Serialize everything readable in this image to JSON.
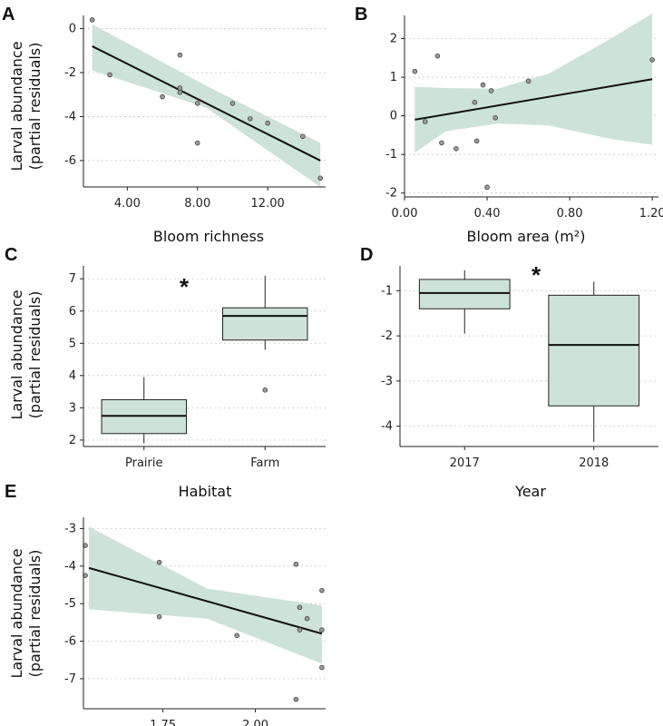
{
  "colors": {
    "ribbon": "#cde2d8",
    "point": "#9a9a9a",
    "line": "#111111"
  },
  "chart_data": [
    {
      "panel": "A",
      "type": "scatter",
      "xlabel": "Bloom richness",
      "ylabel": [
        "Larval abundance",
        "(partial residuals)"
      ],
      "xlim": [
        1.5,
        15.3
      ],
      "ylim": [
        -7.2,
        0.6
      ],
      "xticks": [
        4,
        8,
        12
      ],
      "xtick_labels": [
        "4.00",
        "8.00",
        "12.00"
      ],
      "yticks": [
        -6,
        -4,
        -2,
        0
      ],
      "ytick_labels": [
        "-6",
        "-4",
        "-2",
        "0"
      ],
      "points": [
        [
          2,
          0.4
        ],
        [
          3,
          -2.1
        ],
        [
          6,
          -3.1
        ],
        [
          7,
          -1.2
        ],
        [
          7,
          -2.7
        ],
        [
          7,
          -2.9
        ],
        [
          8,
          -3.4
        ],
        [
          8,
          -5.2
        ],
        [
          10,
          -3.4
        ],
        [
          11,
          -4.1
        ],
        [
          12,
          -4.3
        ],
        [
          14,
          -4.9
        ],
        [
          15,
          -6.8
        ]
      ],
      "fit": [
        [
          2,
          -0.8
        ],
        [
          15,
          -6.0
        ]
      ],
      "band_upper": [
        [
          2,
          0.2
        ],
        [
          8.5,
          -2.6
        ],
        [
          15,
          -5.2
        ]
      ],
      "band_lower": [
        [
          2,
          -1.9
        ],
        [
          8.5,
          -3.6
        ],
        [
          15,
          -7.2
        ]
      ]
    },
    {
      "panel": "B",
      "type": "scatter",
      "xlabel": "Bloom area (m²)",
      "ylabel": [],
      "xlim": [
        0,
        1.23
      ],
      "ylim": [
        -2.1,
        2.6
      ],
      "xticks": [
        0,
        0.4,
        0.8,
        1.2
      ],
      "xtick_labels": [
        "0.00",
        "0.40",
        "0.80",
        "1.20"
      ],
      "yticks": [
        -2,
        -1,
        0,
        1,
        2
      ],
      "ytick_labels": [
        "-2",
        "-1",
        "0",
        "1",
        "2"
      ],
      "points": [
        [
          0.05,
          1.15
        ],
        [
          0.1,
          -0.15
        ],
        [
          0.16,
          1.55
        ],
        [
          0.18,
          -0.7
        ],
        [
          0.25,
          -0.85
        ],
        [
          0.34,
          0.35
        ],
        [
          0.35,
          -0.65
        ],
        [
          0.38,
          0.8
        ],
        [
          0.4,
          -1.85
        ],
        [
          0.42,
          0.65
        ],
        [
          0.44,
          -0.05
        ],
        [
          0.6,
          0.9
        ],
        [
          1.2,
          1.45
        ]
      ],
      "fit": [
        [
          0.05,
          -0.1
        ],
        [
          1.2,
          0.95
        ]
      ],
      "band_upper": [
        [
          0.05,
          0.75
        ],
        [
          0.2,
          0.72
        ],
        [
          0.45,
          0.7
        ],
        [
          0.7,
          1.1
        ],
        [
          1.0,
          2.0
        ],
        [
          1.2,
          2.65
        ]
      ],
      "band_lower": [
        [
          0.05,
          -0.95
        ],
        [
          0.2,
          -0.4
        ],
        [
          0.45,
          -0.2
        ],
        [
          0.7,
          -0.25
        ],
        [
          1.0,
          -0.6
        ],
        [
          1.2,
          -0.75
        ]
      ]
    },
    {
      "panel": "C",
      "type": "box",
      "xlabel": "Habitat",
      "ylabel": [
        "Larval abundance",
        "(partial residuals)"
      ],
      "ylim": [
        1.8,
        7.4
      ],
      "yticks": [
        2,
        3,
        4,
        5,
        6,
        7
      ],
      "ytick_labels": [
        "2",
        "3",
        "4",
        "5",
        "6",
        "7"
      ],
      "categories": [
        "Prairie",
        "Farm"
      ],
      "boxes": [
        {
          "min": 1.9,
          "q1": 2.2,
          "median": 2.75,
          "q3": 3.25,
          "max": 3.95,
          "outliers": []
        },
        {
          "min": 4.8,
          "q1": 5.1,
          "median": 5.85,
          "q3": 6.1,
          "max": 7.1,
          "outliers": [
            3.55
          ]
        }
      ],
      "annotation": "*"
    },
    {
      "panel": "D",
      "type": "box",
      "xlabel": "Year",
      "ylabel": [],
      "ylim": [
        -4.45,
        -0.45
      ],
      "yticks": [
        -4,
        -3,
        -2,
        -1
      ],
      "ytick_labels": [
        "-4",
        "-3",
        "-2",
        "-1"
      ],
      "categories": [
        "2017",
        "2018"
      ],
      "boxes": [
        {
          "min": -1.95,
          "q1": -1.4,
          "median": -1.05,
          "q3": -0.75,
          "max": -0.55,
          "outliers": []
        },
        {
          "min": -4.35,
          "q1": -3.55,
          "median": -2.2,
          "q3": -1.1,
          "max": -0.8,
          "outliers": []
        }
      ],
      "annotation": "*"
    },
    {
      "panel": "E",
      "type": "scatter",
      "xlabel": "",
      "ylabel": [
        "Larval abundance",
        "(partial residuals)"
      ],
      "xlim": [
        1.535,
        2.19
      ],
      "ylim": [
        -7.8,
        -2.7
      ],
      "xticks": [
        1.75,
        2.0
      ],
      "xtick_labels": [
        "1.75",
        "2.00"
      ],
      "yticks": [
        -7,
        -6,
        -5,
        -4,
        -3
      ],
      "ytick_labels": [
        "-7",
        "-6",
        "-5",
        "-4",
        "-3"
      ],
      "points": [
        [
          1.54,
          -3.45
        ],
        [
          1.54,
          -4.25
        ],
        [
          1.74,
          -3.9
        ],
        [
          1.74,
          -5.35
        ],
        [
          1.95,
          -5.85
        ],
        [
          2.11,
          -3.95
        ],
        [
          2.11,
          -7.55
        ],
        [
          2.12,
          -5.1
        ],
        [
          2.12,
          -5.7
        ],
        [
          2.14,
          -5.4
        ],
        [
          2.18,
          -4.65
        ],
        [
          2.18,
          -5.7
        ],
        [
          2.18,
          -6.7
        ]
      ],
      "fit": [
        [
          1.55,
          -4.05
        ],
        [
          2.18,
          -5.8
        ]
      ],
      "band_upper": [
        [
          1.55,
          -2.95
        ],
        [
          1.87,
          -4.6
        ],
        [
          2.18,
          -5.05
        ]
      ],
      "band_lower": [
        [
          1.55,
          -5.15
        ],
        [
          1.87,
          -5.4
        ],
        [
          2.18,
          -6.6
        ]
      ]
    }
  ]
}
